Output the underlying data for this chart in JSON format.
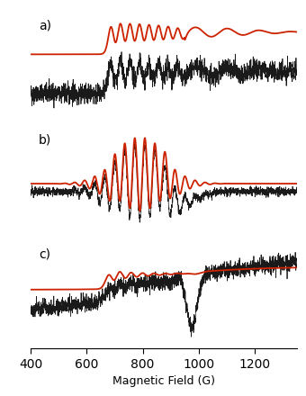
{
  "x_min": 400,
  "x_max": 1350,
  "xlabel": "Magnetic Field (G)",
  "xticks": [
    400,
    600,
    800,
    1000,
    1200
  ],
  "panel_labels": [
    "a)",
    "b)",
    "c)"
  ],
  "background_color": "#f5f5f5",
  "black_color": "#1a1a1a",
  "red_color": "#cc2200",
  "black_lw": 0.55,
  "red_lw": 1.3,
  "noise_seed_a": 42,
  "noise_seed_b": 123,
  "noise_seed_c": 77
}
